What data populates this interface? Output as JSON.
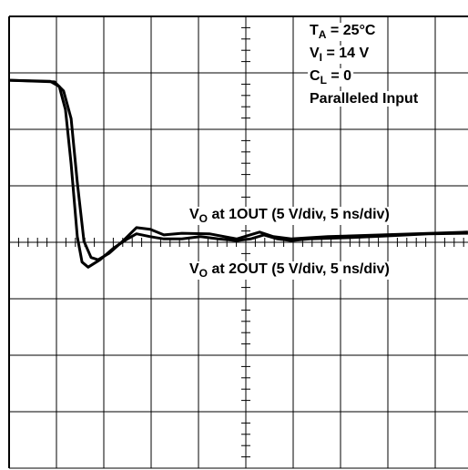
{
  "chart_data": {
    "type": "line",
    "xlim": [
      0,
      10
    ],
    "ylim": [
      -4,
      4
    ],
    "xticks": [
      0,
      1,
      2,
      3,
      4,
      5,
      6,
      7,
      8,
      9,
      10
    ],
    "yticks": [
      -4,
      -3,
      -2,
      -1,
      0,
      1,
      2,
      3,
      4
    ],
    "grid": true,
    "minor_ticks_per_div": 5,
    "annotations": [
      {
        "main": "T",
        "sub": "A",
        "rest": " = 25°C"
      },
      {
        "main": "V",
        "sub": "I",
        "rest": " = 14 V"
      },
      {
        "main": "C",
        "sub": "L",
        "rest": " = 0"
      },
      {
        "main": "Paralleled Input"
      }
    ],
    "series": [
      {
        "name": {
          "main": "V",
          "sub": "O",
          "rest": " at 1OUT (5 V/div, 5 ns/div)"
        },
        "color": "#000000",
        "x": [
          0,
          0.87,
          1.06,
          1.19,
          1.31,
          1.44,
          1.54,
          1.67,
          1.92,
          2.21,
          2.5,
          2.69,
          2.98,
          3.27,
          3.65,
          4.04,
          4.42,
          4.81,
          5.1,
          5.38,
          5.67,
          5.96,
          6.35,
          7.12,
          7.88,
          8.85,
          9.69
        ],
        "values": [
          2.87,
          2.85,
          2.76,
          2.35,
          1.39,
          0.1,
          -0.35,
          -0.44,
          -0.31,
          -0.1,
          0.06,
          0.15,
          0.1,
          0.06,
          0.06,
          0.1,
          0.06,
          0.03,
          0.06,
          0.13,
          0.06,
          0.03,
          0.06,
          0.08,
          0.11,
          0.15,
          0.16
        ]
      },
      {
        "name": {
          "main": "V",
          "sub": "O",
          "rest": " at 2OUT (5 V/div, 5 ns/div)"
        },
        "color": "#000000",
        "x": [
          0,
          0.96,
          1.15,
          1.31,
          1.44,
          1.58,
          1.73,
          1.88,
          2.12,
          2.4,
          2.69,
          2.98,
          3.27,
          3.65,
          4.23,
          4.81,
          5.29,
          5.58,
          5.96,
          6.73,
          7.88,
          9.69
        ],
        "values": [
          2.87,
          2.84,
          2.68,
          2.19,
          1.06,
          0.02,
          -0.27,
          -0.31,
          -0.19,
          0.02,
          0.26,
          0.23,
          0.13,
          0.16,
          0.15,
          0.06,
          0.18,
          0.1,
          0.06,
          0.1,
          0.13,
          0.18
        ]
      }
    ]
  }
}
